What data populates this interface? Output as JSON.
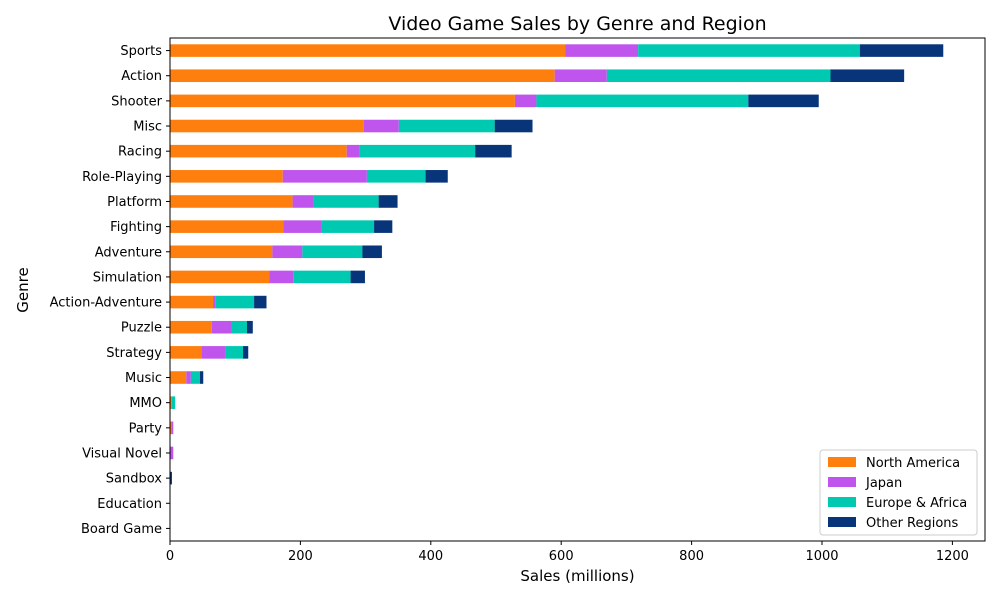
{
  "chart_data": {
    "type": "bar",
    "orientation": "horizontal",
    "stacked": true,
    "title": "Video Game Sales by Genre and Region",
    "xlabel": "Sales (millions)",
    "ylabel": "Genre",
    "xlim": [
      0,
      1250
    ],
    "xticks": [
      0,
      200,
      400,
      600,
      800,
      1000,
      1200
    ],
    "grid": false,
    "legend_position": "bottom-right",
    "categories": [
      "Sports",
      "Action",
      "Shooter",
      "Misc",
      "Racing",
      "Role-Playing",
      "Platform",
      "Fighting",
      "Adventure",
      "Simulation",
      "Action-Adventure",
      "Puzzle",
      "Strategy",
      "Music",
      "MMO",
      "Party",
      "Visual Novel",
      "Sandbox",
      "Education",
      "Board Game"
    ],
    "series": [
      {
        "name": "North America",
        "color": "#ff7f0e",
        "values": [
          606,
          590,
          529,
          297,
          271,
          173,
          188,
          174,
          157,
          152,
          66,
          64,
          48,
          25,
          2,
          2,
          0,
          0,
          0,
          0
        ]
      },
      {
        "name": "Japan",
        "color": "#bf55ec",
        "values": [
          112,
          80,
          33,
          54,
          19,
          129,
          32,
          59,
          46,
          37,
          4,
          31,
          37,
          7,
          1,
          3,
          5,
          0,
          0,
          0
        ]
      },
      {
        "name": "Europe & Africa",
        "color": "#00c9b1",
        "values": [
          340,
          343,
          325,
          147,
          178,
          90,
          100,
          80,
          92,
          88,
          59,
          23,
          27,
          14,
          5,
          0,
          0,
          0,
          0,
          0
        ]
      },
      {
        "name": "Other Regions",
        "color": "#08357a",
        "values": [
          128,
          113,
          108,
          58,
          56,
          34,
          29,
          28,
          30,
          22,
          19,
          9,
          8,
          5,
          0,
          0,
          0,
          3,
          0,
          0
        ]
      }
    ]
  }
}
